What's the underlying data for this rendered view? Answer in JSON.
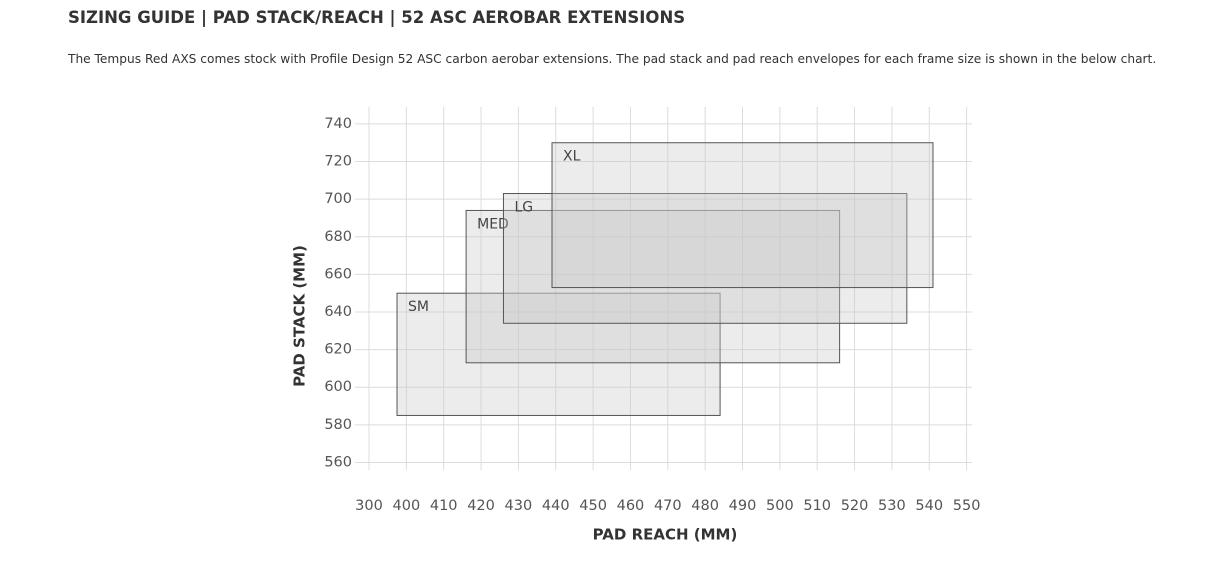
{
  "header": {
    "title": "SIZING GUIDE | PAD STACK/REACH | 52 ASC AEROBAR EXTENSIONS",
    "description": "The Tempus Red AXS comes stock with Profile Design 52 ASC carbon aerobar extensions. The pad stack and pad reach envelopes for each frame size is shown in the below chart."
  },
  "chart_data": {
    "type": "range-rect",
    "x_label": "PAD REACH (MM)",
    "y_label": "PAD STACK (MM)",
    "xlim": [
      300,
      550
    ],
    "ylim": [
      556,
      749
    ],
    "xticks": [
      300,
      400,
      410,
      420,
      430,
      440,
      450,
      460,
      470,
      480,
      490,
      500,
      510,
      520,
      530,
      540,
      550
    ],
    "yticks": [
      560,
      580,
      600,
      620,
      640,
      660,
      680,
      700,
      720,
      740
    ],
    "grid": true,
    "fill": "rgba(200,200,200,0.35)",
    "stroke": "#555555",
    "series": [
      {
        "name": "SM",
        "x": [
          375,
          484
        ],
        "y": [
          585,
          650
        ]
      },
      {
        "name": "MED",
        "x": [
          416,
          516
        ],
        "y": [
          613,
          694
        ]
      },
      {
        "name": "LG",
        "x": [
          426,
          534
        ],
        "y": [
          634,
          703
        ]
      },
      {
        "name": "XL",
        "x": [
          439,
          541
        ],
        "y": [
          653,
          730
        ]
      }
    ]
  }
}
